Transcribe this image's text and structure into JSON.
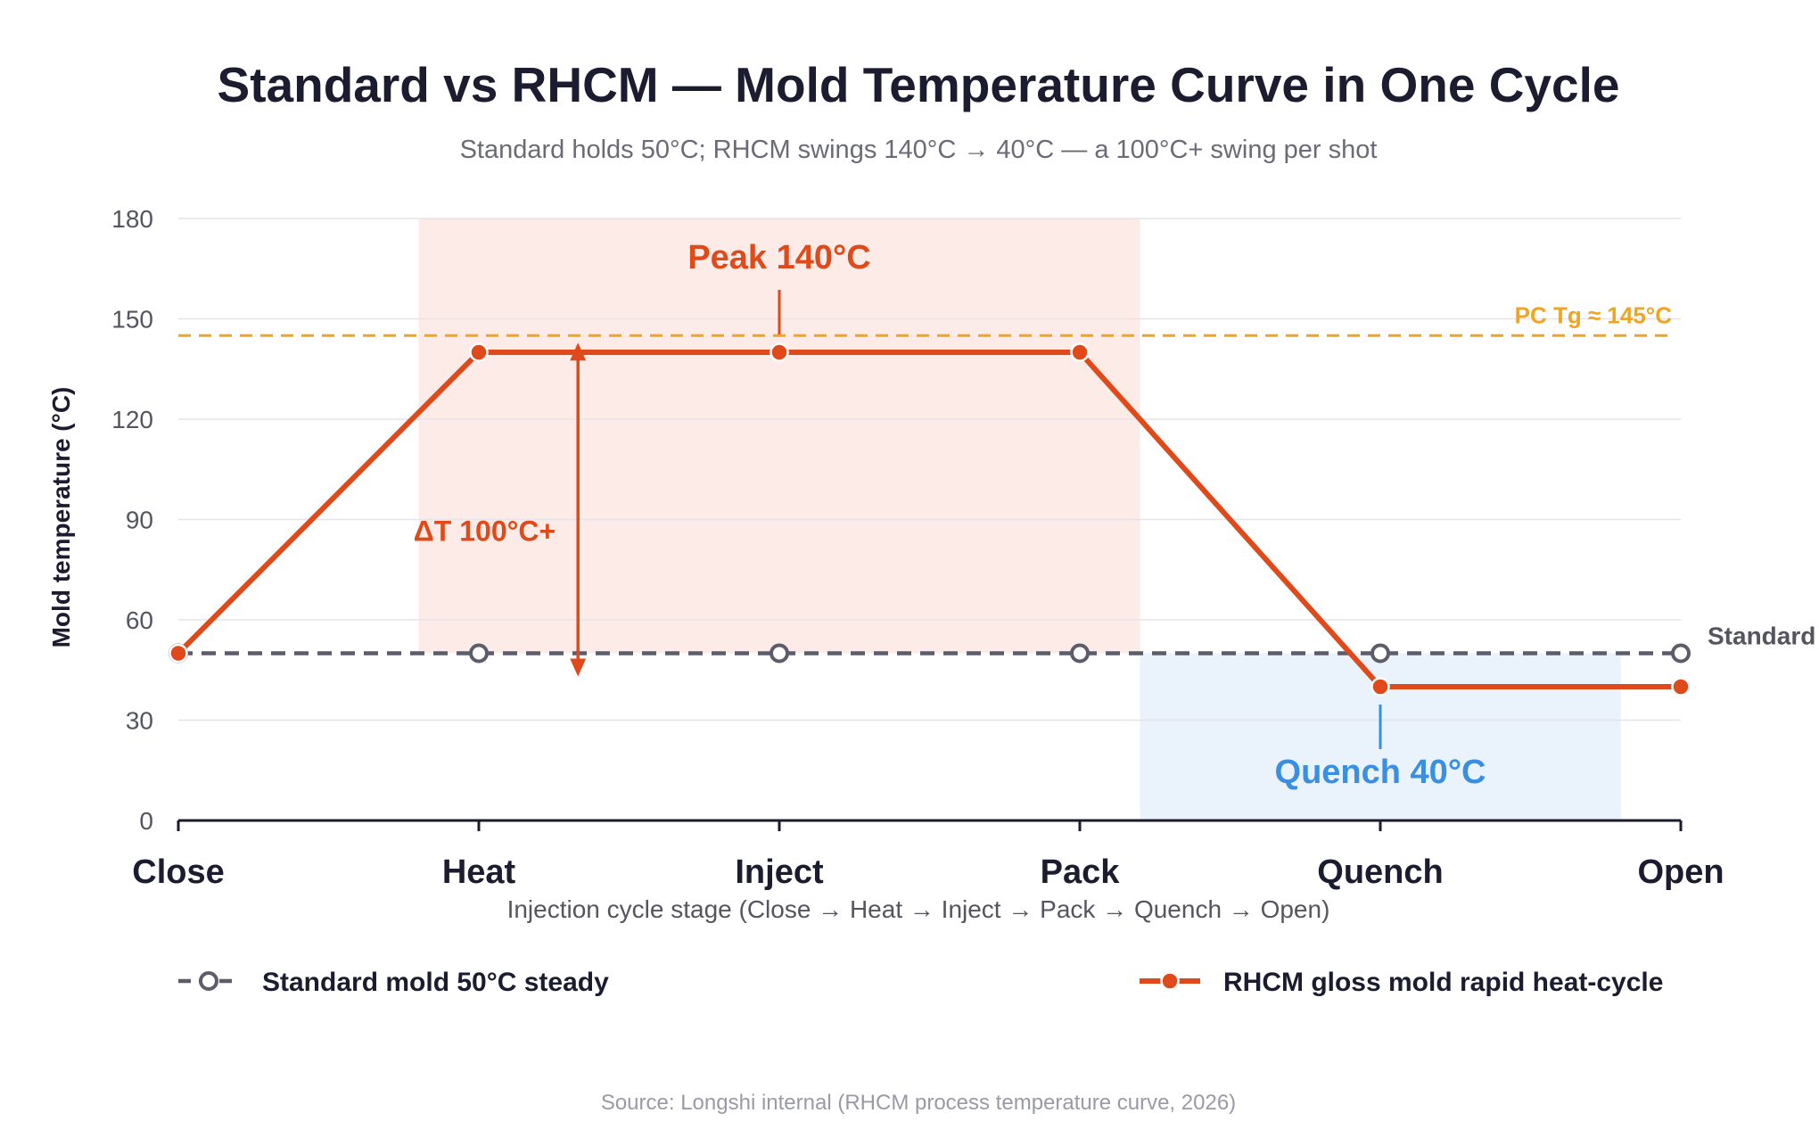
{
  "chart_data": {
    "type": "line",
    "title": "Standard vs RHCM — Mold Temperature Curve in One Cycle",
    "subtitle": "Standard holds 50°C; RHCM swings 140°C → 40°C — a 100°C+ swing per shot",
    "xlabel": "Injection cycle stage (Close → Heat → Inject → Pack → Quench → Open)",
    "ylabel": "Mold temperature (°C)",
    "categories": [
      "Close",
      "Heat",
      "Inject",
      "Pack",
      "Quench",
      "Open"
    ],
    "ylim": [
      0,
      180
    ],
    "yticks": [
      0,
      30,
      60,
      90,
      120,
      150,
      180
    ],
    "grid": true,
    "legend_position": "bottom",
    "series": [
      {
        "name": "Standard mold 50°C steady",
        "values": [
          50,
          50,
          50,
          50,
          50,
          50
        ],
        "color": "#5c5c6b",
        "style": "dashed",
        "marker": "hollow-circle"
      },
      {
        "name": "RHCM gloss mold rapid heat-cycle",
        "values": [
          50,
          140,
          140,
          140,
          40,
          40
        ],
        "color": "#e04a1a",
        "style": "solid",
        "marker": "filled-circle"
      }
    ],
    "bands": [
      {
        "from": 0.8,
        "to": 3.2,
        "ymin": 50,
        "ymax": 180,
        "color": "#fde8e3"
      },
      {
        "from": 3.2,
        "to": 4.8,
        "ymin": 0,
        "ymax": 50,
        "color": "#e6f0fc"
      }
    ],
    "reference_line": {
      "value": 145,
      "label": "PC Tg ≈ 145°C",
      "color": "#f0a520"
    },
    "annotations": {
      "peak": {
        "label": "Peak 140°C",
        "x": 2,
        "y": 140
      },
      "delta": {
        "label": "ΔT 100°C+",
        "x": 1.33,
        "from": 50,
        "to": 145
      },
      "quench": {
        "label": "Quench 40°C",
        "x": 4,
        "y": 40
      },
      "standard_end": {
        "label": "Standard"
      }
    },
    "source": "Source: Longshi internal (RHCM process temperature curve, 2026)"
  }
}
